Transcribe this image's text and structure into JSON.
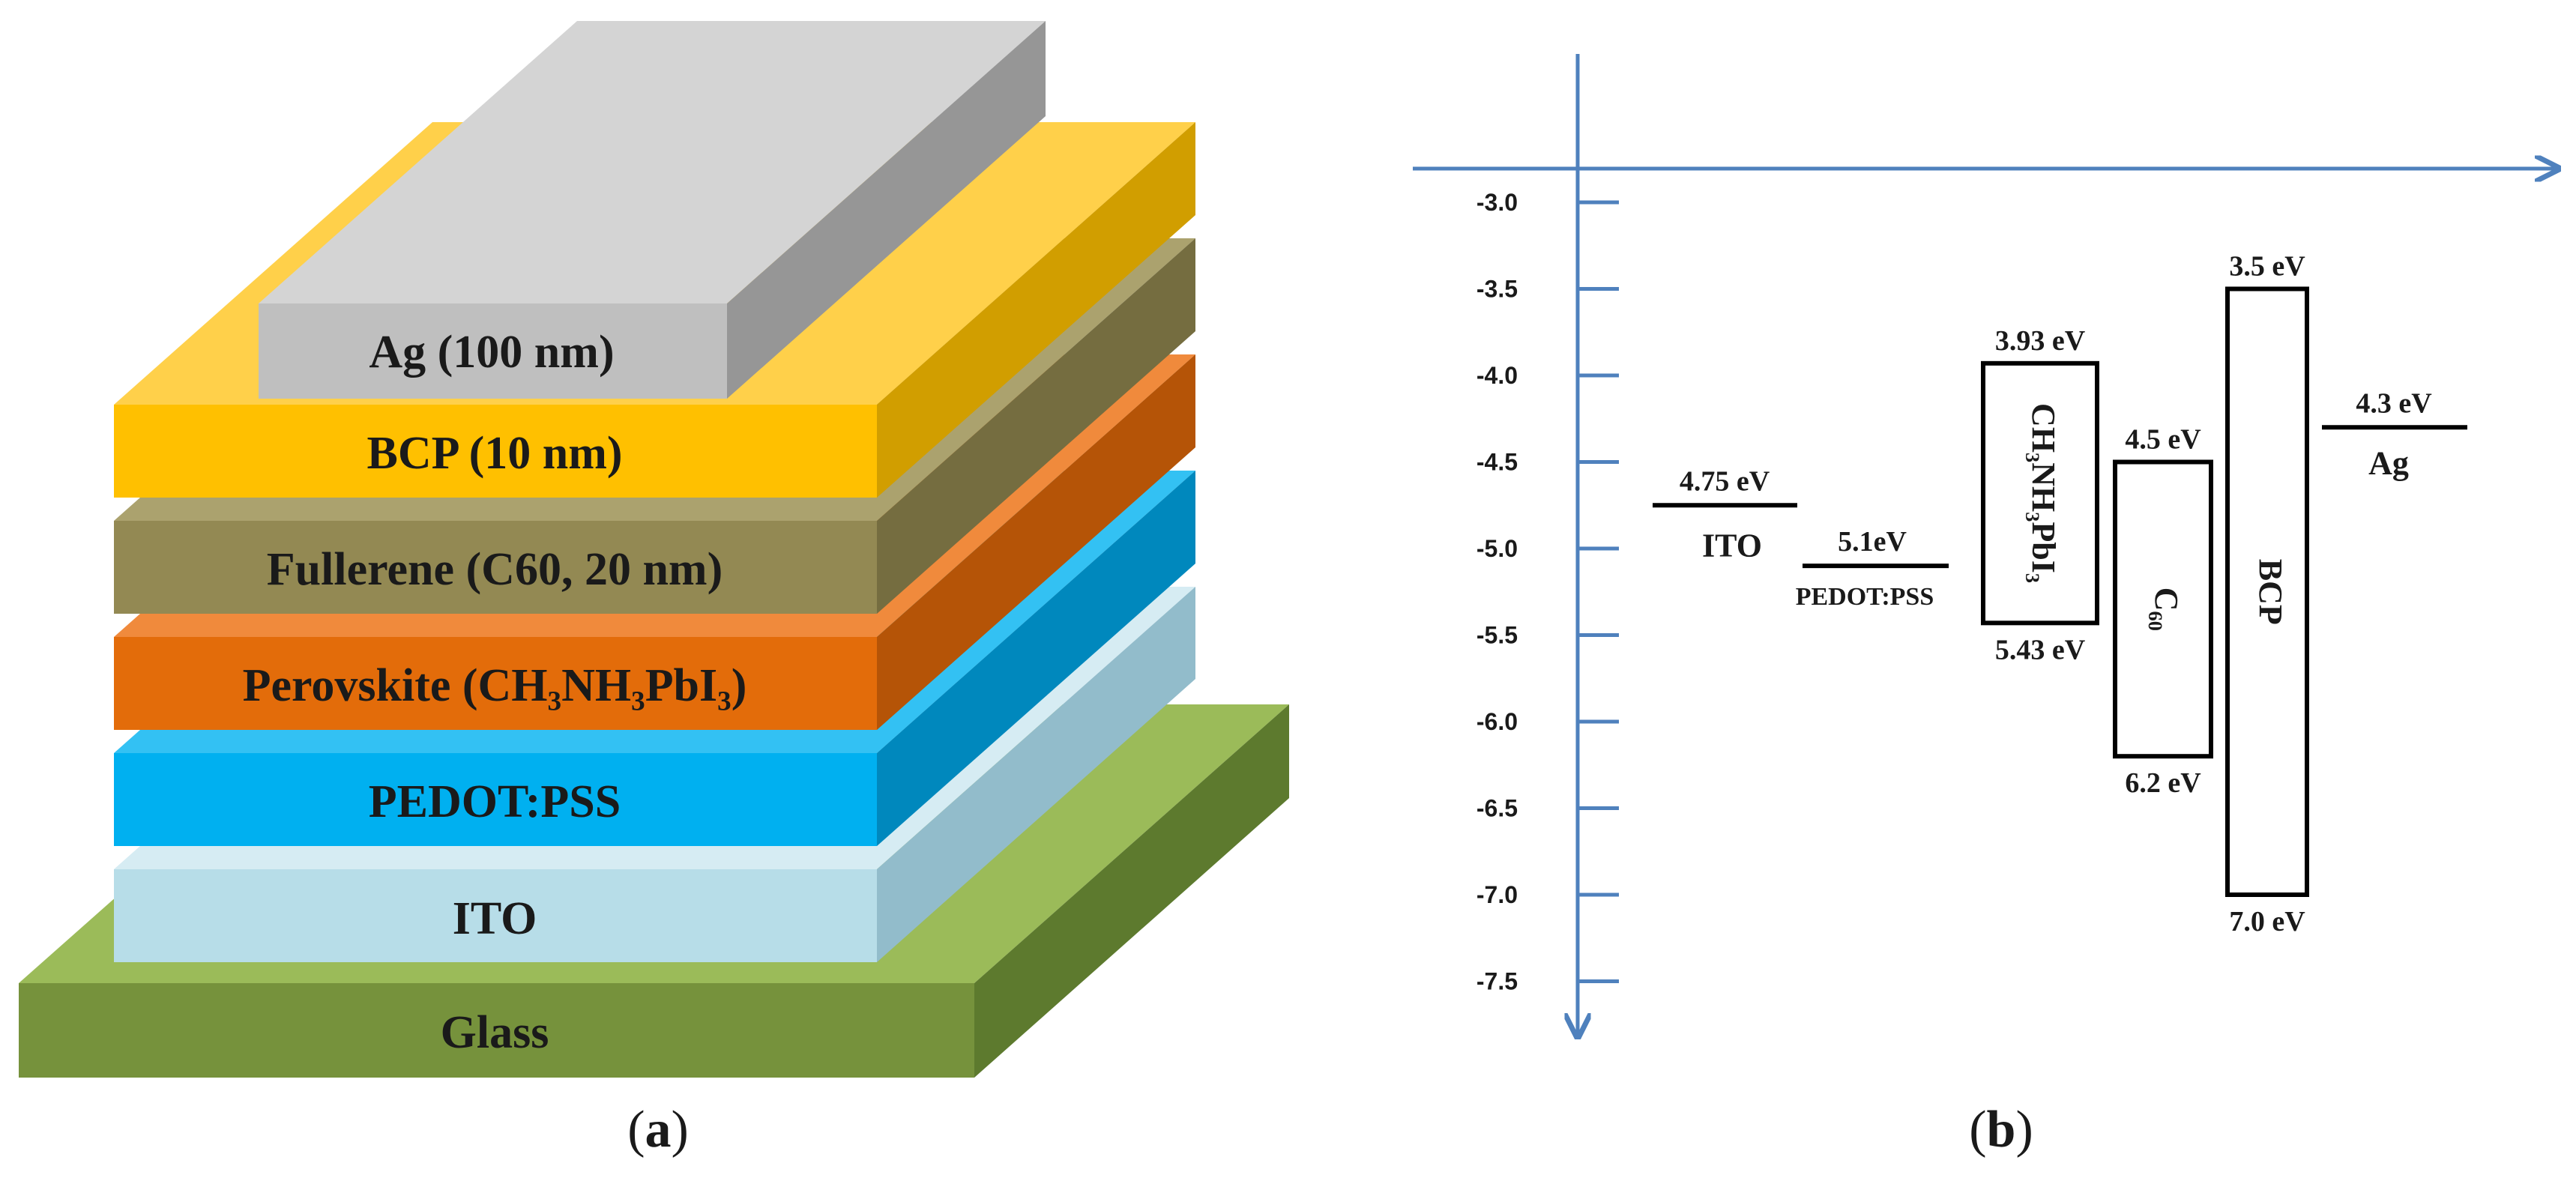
{
  "panel_a": {
    "caption": "a",
    "layers": [
      {
        "name": "Glass",
        "label": "Glass",
        "front": "#76923c",
        "top": "#9bbb59",
        "side": "#5d7a2e"
      },
      {
        "name": "ITO",
        "label": "ITO",
        "front": "#b7dde8",
        "top": "#d6ecf3",
        "side": "#92bccb"
      },
      {
        "name": "PEDOT:PSS",
        "label": "PEDOT:PSS",
        "front": "#00b0f0",
        "top": "#33c1f3",
        "side": "#0088bd"
      },
      {
        "name": "Perovskite",
        "label": "Perovskite (CH₃NH₃PbI₃)",
        "front": "#e36c0a",
        "top": "#f08a3c",
        "side": "#b55407"
      },
      {
        "name": "Fullerene",
        "label": "Fullerene (C60, 20 nm)",
        "front": "#938953",
        "top": "#aba26e",
        "side": "#756d40"
      },
      {
        "name": "BCP",
        "label": "BCP (10 nm)",
        "front": "#ffc000",
        "top": "#ffd04a",
        "side": "#d19e00"
      },
      {
        "name": "Ag",
        "label": "Ag (100 nm)",
        "front": "#bfbfbf",
        "top": "#d4d4d4",
        "side": "#969696"
      }
    ]
  },
  "panel_b": {
    "caption": "b",
    "axis": {
      "ticks": [
        "-3.0",
        "-3.5",
        "-4.0",
        "-4.5",
        "-5.0",
        "-5.5",
        "-6.0",
        "-6.5",
        "-7.0",
        "-7.5"
      ],
      "tick_values": [
        -3.0,
        -3.5,
        -4.0,
        -4.5,
        -5.0,
        -5.5,
        -6.0,
        -6.5,
        -7.0,
        -7.5
      ],
      "color": "#4f81bd"
    },
    "levels": [
      {
        "material": "ITO",
        "value": -4.75,
        "value_label": "4.75 eV"
      },
      {
        "material": "PEDOT:PSS",
        "value": -5.1,
        "value_label": "5.1eV"
      },
      {
        "material": "Ag",
        "value": -4.3,
        "value_label": "4.3 eV"
      }
    ],
    "boxes": [
      {
        "material": "CH₃NH₃PbI₃",
        "lumo": -3.93,
        "homo": -5.43,
        "lumo_label": "3.93 eV",
        "homo_label": "5.43 eV"
      },
      {
        "material": "C₆₀",
        "lumo": -4.5,
        "homo": -6.2,
        "lumo_label": "4.5 eV",
        "homo_label": "6.2 eV"
      },
      {
        "material": "BCP",
        "lumo": -3.5,
        "homo": -7.0,
        "lumo_label": "3.5 eV",
        "homo_label": "7.0 eV"
      }
    ]
  }
}
